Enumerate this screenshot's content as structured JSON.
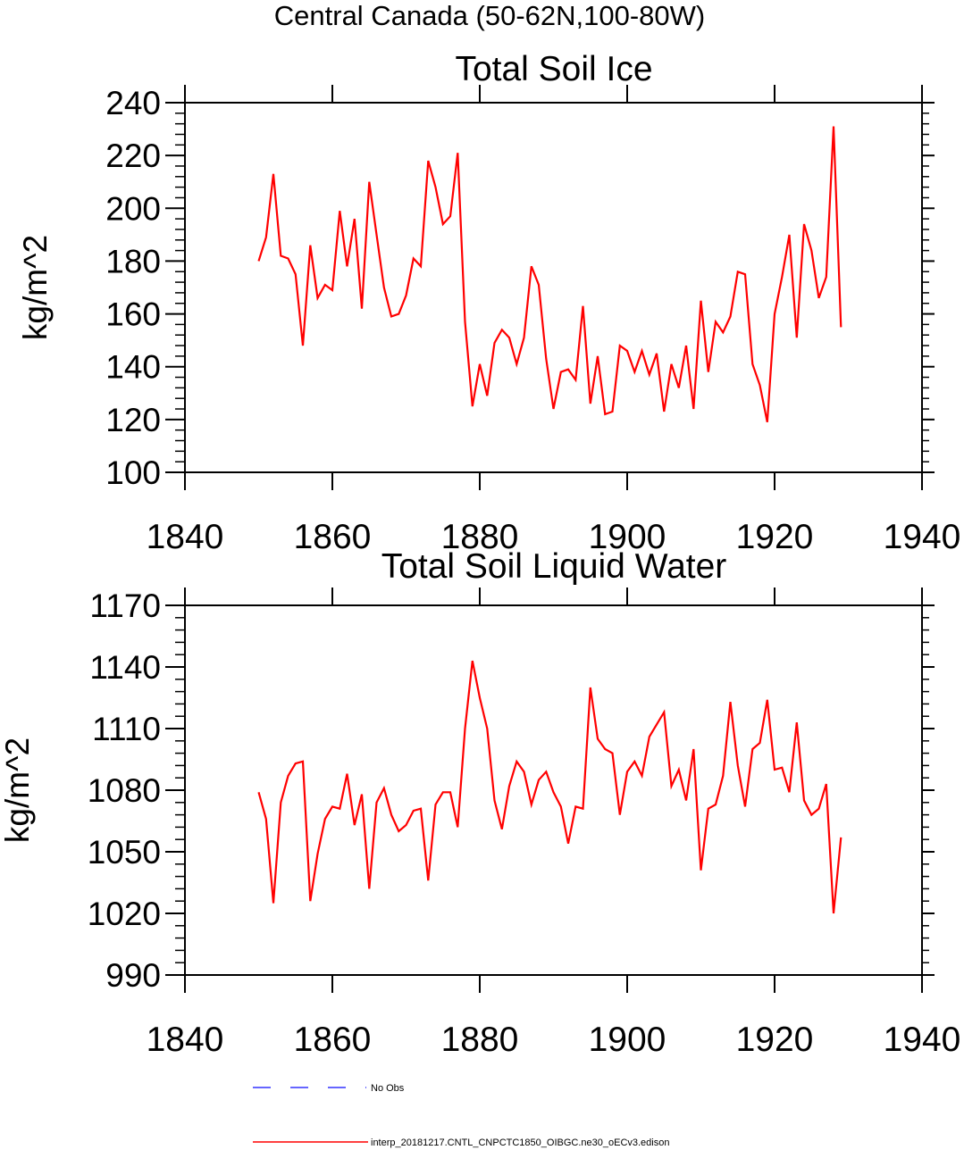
{
  "suptitle": "Central Canada (50-62N,100-80W)",
  "colors": {
    "model": "#ff0000",
    "obs": "#3333ff",
    "axis": "#000000"
  },
  "chart_data": [
    {
      "type": "line",
      "title": "Total Soil Ice",
      "xlabel": "",
      "ylabel": "kg/m^2",
      "xlim": [
        1840,
        1940
      ],
      "ylim": [
        100,
        240
      ],
      "xticks": [
        1840,
        1860,
        1880,
        1900,
        1920,
        1940
      ],
      "yticks": [
        100,
        120,
        140,
        160,
        180,
        200,
        220,
        240
      ],
      "xticklabels": [
        "1840",
        "1860",
        "1880",
        "1900",
        "1920",
        "1940"
      ],
      "yticklabels": [
        "100",
        "120",
        "140",
        "160",
        "180",
        "200",
        "220",
        "240"
      ],
      "x_start": 1850,
      "series": [
        {
          "name": "interp_20181217.CNTL_CNPCTC1850_OIBGC.ne30_oECv3.edison",
          "color": "#ff0000",
          "values": [
            180,
            189,
            213,
            182,
            181,
            175,
            148,
            186,
            166,
            171,
            169,
            199,
            178,
            196,
            162,
            210,
            190,
            170,
            159,
            160,
            167,
            181,
            178,
            218,
            208,
            194,
            197,
            221,
            157,
            125,
            141,
            129,
            149,
            154,
            151,
            141,
            151,
            178,
            171,
            143,
            124,
            138,
            139,
            135,
            163,
            126,
            144,
            122,
            123,
            148,
            146,
            138,
            146,
            137,
            145,
            123,
            141,
            132,
            148,
            124,
            165,
            138,
            157,
            153,
            159,
            176,
            175,
            141,
            133,
            119,
            160,
            174,
            190,
            151,
            194,
            184,
            166,
            174,
            231,
            155
          ]
        }
      ]
    },
    {
      "type": "line",
      "title": "Total Soil Liquid Water",
      "xlabel": "",
      "ylabel": "kg/m^2",
      "xlim": [
        1840,
        1940
      ],
      "ylim": [
        990,
        1170
      ],
      "xticks": [
        1840,
        1860,
        1880,
        1900,
        1920,
        1940
      ],
      "yticks": [
        990,
        1020,
        1050,
        1080,
        1110,
        1140,
        1170
      ],
      "xticklabels": [
        "1840",
        "1860",
        "1880",
        "1900",
        "1920",
        "1940"
      ],
      "yticklabels": [
        "990",
        "1020",
        "1050",
        "1080",
        "1110",
        "1140",
        "1170"
      ],
      "x_start": 1850,
      "series": [
        {
          "name": "interp_20181217.CNTL_CNPCTC1850_OIBGC.ne30_oECv3.edison",
          "color": "#ff0000",
          "values": [
            1079,
            1066,
            1025,
            1074,
            1087,
            1093,
            1094,
            1026,
            1049,
            1066,
            1072,
            1071,
            1088,
            1063,
            1078,
            1032,
            1074,
            1081,
            1068,
            1060,
            1063,
            1070,
            1071,
            1036,
            1073,
            1079,
            1079,
            1062,
            1110,
            1143,
            1125,
            1110,
            1075,
            1061,
            1082,
            1094,
            1089,
            1073,
            1085,
            1089,
            1079,
            1072,
            1054,
            1072,
            1071,
            1130,
            1105,
            1100,
            1098,
            1068,
            1089,
            1094,
            1087,
            1106,
            1112,
            1118,
            1082,
            1090,
            1075,
            1100,
            1041,
            1071,
            1073,
            1087,
            1123,
            1092,
            1072,
            1100,
            1103,
            1124,
            1090,
            1091,
            1079,
            1113,
            1075,
            1068,
            1071,
            1083,
            1020,
            1057
          ]
        }
      ]
    }
  ],
  "legend": [
    {
      "label": "No Obs",
      "style": "dashed",
      "color": "#3333ff"
    },
    {
      "label": "interp_20181217.CNTL_CNPCTC1850_OIBGC.ne30_oECv3.edison",
      "style": "solid",
      "color": "#ff0000"
    }
  ]
}
